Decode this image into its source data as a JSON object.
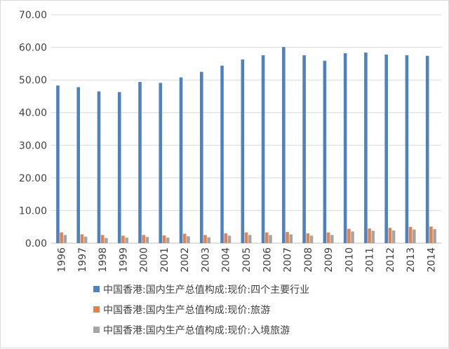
{
  "chart_data": {
    "type": "bar",
    "categories": [
      "1996",
      "1997",
      "1998",
      "1999",
      "2000",
      "2001",
      "2002",
      "2003",
      "2004",
      "2005",
      "2006",
      "2007",
      "2008",
      "2009",
      "2010",
      "2011",
      "2012",
      "2013",
      "2014"
    ],
    "series": [
      {
        "name": "中国香港:国内生产总值构成:现价:四个主要行业",
        "color": "#4f81bd",
        "values": [
          48.3,
          47.8,
          46.5,
          46.3,
          49.4,
          49.1,
          50.8,
          52.5,
          54.4,
          56.3,
          57.6,
          60.1,
          57.6,
          55.9,
          58.2,
          58.4,
          57.8,
          57.6,
          57.4
        ]
      },
      {
        "name": "中国香港:国内生产总值构成:现价:旅游",
        "color": "#dd8452",
        "values": [
          3.3,
          2.7,
          2.5,
          2.3,
          2.5,
          2.4,
          2.9,
          2.5,
          3.0,
          3.3,
          3.3,
          3.4,
          3.0,
          3.3,
          4.4,
          4.5,
          4.7,
          5.0,
          5.1
        ]
      },
      {
        "name": "中国香港:国内生产总值构成:现价:入境旅游",
        "color": "#a5a5a5",
        "values": [
          2.5,
          2.0,
          1.6,
          1.7,
          1.9,
          1.7,
          2.1,
          1.8,
          2.3,
          2.5,
          2.5,
          2.7,
          2.3,
          2.5,
          3.6,
          3.8,
          3.9,
          4.2,
          4.3
        ]
      }
    ],
    "ylim": [
      0,
      70
    ],
    "ytick_labels": [
      "0.00",
      "10.00",
      "20.00",
      "30.00",
      "40.00",
      "50.00",
      "60.00",
      "70.00"
    ],
    "grid": true,
    "legend_position": "bottom"
  }
}
